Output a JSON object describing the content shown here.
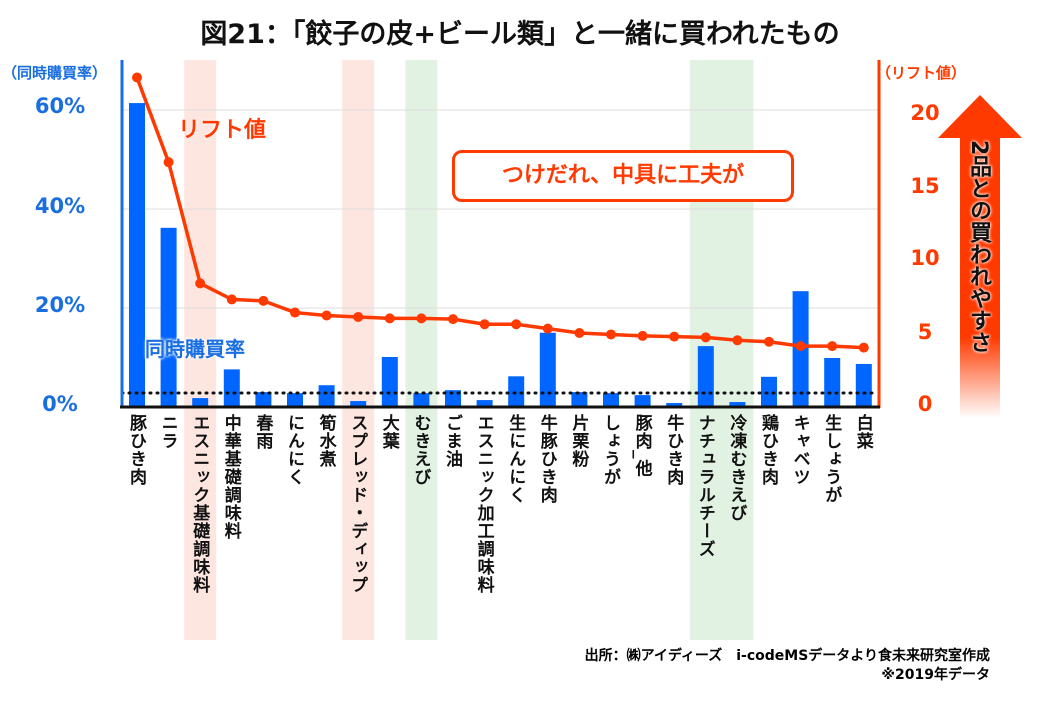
{
  "chart_data": {
    "type": "bar+line",
    "title": "図21：「餃子の皮+ビール類」と一緒に買われたもの",
    "categories": [
      "豚ひき肉",
      "ニラ",
      "エスニック基礎調味料",
      "中華基礎調味料",
      "春雨",
      "にんにく",
      "筍水煮",
      "スプレッド・ディップ",
      "大葉",
      "むきえび",
      "ごま油",
      "エスニック加工調味料",
      "生にんにく",
      "牛豚ひき肉",
      "片栗粉",
      "しょうが",
      "豚肉_他",
      "牛ひき肉",
      "ナチュラルチーズ",
      "冷凍むきえび",
      "鶏ひき肉",
      "キャベツ",
      "生しょうが",
      "白菜"
    ],
    "series": [
      {
        "name": "同時購買率",
        "axis": "left",
        "type": "bar",
        "unit": "%",
        "values": [
          61.4,
          36.2,
          1.8,
          7.6,
          3.0,
          2.8,
          4.4,
          1.2,
          10.1,
          2.8,
          3.4,
          1.4,
          6.2,
          15.0,
          3.0,
          2.8,
          2.4,
          0.8,
          12.3,
          1.0,
          6.1,
          23.4,
          9.9,
          8.7
        ]
      },
      {
        "name": "リフト値",
        "axis": "right",
        "type": "line",
        "values": [
          22.5,
          16.7,
          8.4,
          7.3,
          7.2,
          6.4,
          6.2,
          6.1,
          6.0,
          6.0,
          5.95,
          5.6,
          5.6,
          5.3,
          5.0,
          4.9,
          4.8,
          4.75,
          4.7,
          4.5,
          4.4,
          4.1,
          4.1,
          4.0
        ]
      }
    ],
    "reference_line_left": 2.8,
    "highlight_pink": [
      2,
      7
    ],
    "highlight_green": [
      9,
      18,
      19
    ],
    "left_axis": {
      "label": "（同時購買率）",
      "ticks": [
        "0%",
        "20%",
        "40%",
        "60%"
      ],
      "tick_values": [
        0,
        20,
        40,
        60
      ]
    },
    "right_axis": {
      "label": "（リフト値）",
      "ticks": [
        "0",
        "5",
        "10",
        "15",
        "20"
      ],
      "tick_values": [
        0,
        5,
        10,
        15,
        20
      ]
    },
    "annotations": {
      "lift_label": "リフト値",
      "rate_label": "同時購買率",
      "callout": "つけだれ、中具に工夫が",
      "arrow": "2品との買われやすさ"
    },
    "source": "出所：㈱アイディーズ　i-codeMSデータより食未来研究室作成",
    "note": "※2019年データ",
    "colors": {
      "bar": "#0066ff",
      "line": "#ff3a00",
      "pink": "#fde6e0",
      "green": "#e1f2e2"
    }
  }
}
